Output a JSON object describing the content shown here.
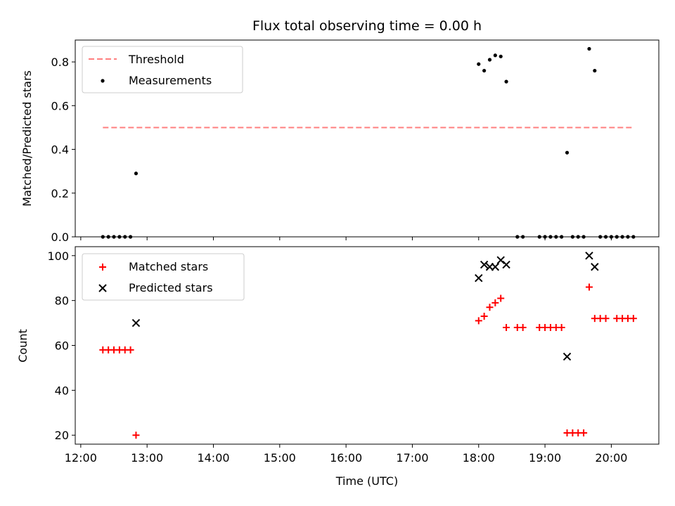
{
  "chart_data": [
    {
      "type": "scatter",
      "title": "Flux total observing time = 0.00 h",
      "xlabel": "",
      "ylabel": "Matched/Predicted stars",
      "ylim": [
        0,
        0.9
      ],
      "y_ticks": [
        "0.0",
        "0.2",
        "0.4",
        "0.6",
        "0.8"
      ],
      "legend": {
        "placement": "top-left",
        "entries": [
          "Threshold",
          "Measurements"
        ]
      },
      "threshold": {
        "name": "Threshold",
        "value": 0.5,
        "x_start": "12:20",
        "x_end": "20:20",
        "color": "#ff7f7f",
        "style": "dashed"
      },
      "series": [
        {
          "name": "Measurements",
          "color": "#000000",
          "marker": "dot",
          "points": [
            [
              "12:20",
              0
            ],
            [
              "12:25",
              0
            ],
            [
              "12:30",
              0
            ],
            [
              "12:35",
              0
            ],
            [
              "12:40",
              0
            ],
            [
              "12:45",
              0
            ],
            [
              "12:50",
              0.29
            ],
            [
              "18:00",
              0.79
            ],
            [
              "18:05",
              0.76
            ],
            [
              "18:10",
              0.81
            ],
            [
              "18:15",
              0.83
            ],
            [
              "18:20",
              0.825
            ],
            [
              "18:25",
              0.71
            ],
            [
              "18:35",
              0
            ],
            [
              "18:40",
              0
            ],
            [
              "18:55",
              0
            ],
            [
              "19:00",
              0
            ],
            [
              "19:05",
              0
            ],
            [
              "19:10",
              0
            ],
            [
              "19:15",
              0
            ],
            [
              "19:20",
              0.385
            ],
            [
              "19:25",
              0
            ],
            [
              "19:30",
              0
            ],
            [
              "19:35",
              0
            ],
            [
              "19:40",
              0.86
            ],
            [
              "19:45",
              0.76
            ],
            [
              "19:50",
              0
            ],
            [
              "19:55",
              0
            ],
            [
              "20:00",
              0
            ],
            [
              "20:05",
              0
            ],
            [
              "20:10",
              0
            ],
            [
              "20:15",
              0
            ],
            [
              "20:20",
              0
            ]
          ]
        }
      ]
    },
    {
      "type": "scatter",
      "title": "",
      "xlabel": "Time (UTC)",
      "ylabel": "Count",
      "xlim": [
        "11:55",
        "20:43"
      ],
      "ylim": [
        16,
        104
      ],
      "x_ticks": [
        "12:00",
        "13:00",
        "14:00",
        "15:00",
        "16:00",
        "17:00",
        "18:00",
        "19:00",
        "20:00"
      ],
      "y_ticks": [
        "20",
        "40",
        "60",
        "80",
        "100"
      ],
      "legend": {
        "placement": "top-left",
        "entries": [
          "Matched stars",
          "Predicted stars"
        ]
      },
      "series": [
        {
          "name": "Matched stars",
          "color": "#ff0000",
          "marker": "plus",
          "points": [
            [
              "12:20",
              58
            ],
            [
              "12:25",
              58
            ],
            [
              "12:30",
              58
            ],
            [
              "12:35",
              58
            ],
            [
              "12:40",
              58
            ],
            [
              "12:45",
              58
            ],
            [
              "12:50",
              20
            ],
            [
              "18:00",
              71
            ],
            [
              "18:05",
              73
            ],
            [
              "18:10",
              77
            ],
            [
              "18:15",
              79
            ],
            [
              "18:20",
              81
            ],
            [
              "18:25",
              68
            ],
            [
              "18:35",
              68
            ],
            [
              "18:40",
              68
            ],
            [
              "18:55",
              68
            ],
            [
              "19:00",
              68
            ],
            [
              "19:05",
              68
            ],
            [
              "19:10",
              68
            ],
            [
              "19:15",
              68
            ],
            [
              "19:20",
              21
            ],
            [
              "19:25",
              21
            ],
            [
              "19:30",
              21
            ],
            [
              "19:35",
              21
            ],
            [
              "19:40",
              86
            ],
            [
              "19:45",
              72
            ],
            [
              "19:50",
              72
            ],
            [
              "19:55",
              72
            ],
            [
              "20:05",
              72
            ],
            [
              "20:10",
              72
            ],
            [
              "20:15",
              72
            ],
            [
              "20:20",
              72
            ]
          ]
        },
        {
          "name": "Predicted stars",
          "color": "#000000",
          "marker": "x",
          "points": [
            [
              "12:50",
              70
            ],
            [
              "18:00",
              90
            ],
            [
              "18:05",
              96
            ],
            [
              "18:10",
              95
            ],
            [
              "18:15",
              95
            ],
            [
              "18:20",
              98
            ],
            [
              "18:25",
              96
            ],
            [
              "19:20",
              55
            ],
            [
              "19:40",
              100
            ],
            [
              "19:45",
              95
            ]
          ]
        }
      ]
    }
  ]
}
